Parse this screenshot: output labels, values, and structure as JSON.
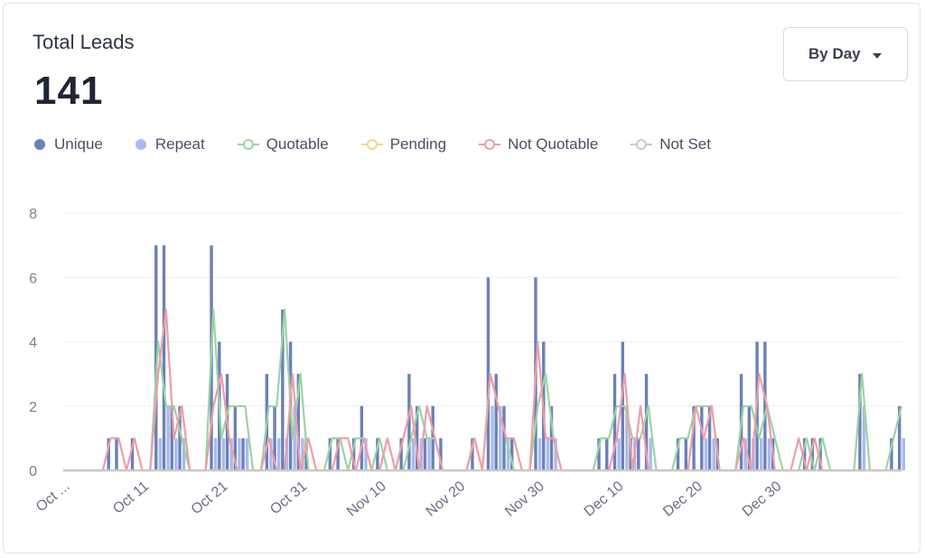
{
  "header": {
    "title": "Total Leads",
    "total": "141",
    "dropdown_label": "By Day"
  },
  "legend": [
    {
      "name": "Unique",
      "color": "#6a80b9",
      "kind": "bar"
    },
    {
      "name": "Repeat",
      "color": "#a9bbec",
      "kind": "bar"
    },
    {
      "name": "Quotable",
      "color": "#9ad5a3",
      "kind": "line"
    },
    {
      "name": "Pending",
      "color": "#f6d38e",
      "kind": "line"
    },
    {
      "name": "Not Quotable",
      "color": "#ef9da8",
      "kind": "line"
    },
    {
      "name": "Not Set",
      "color": "#c9c9c9",
      "kind": "line"
    }
  ],
  "chart_data": {
    "type": "bar",
    "x_start": "Oct 1",
    "x_end": "Dec 31",
    "x_ticks": [
      "Oct ...",
      "Oct 11",
      "Oct 21",
      "Oct 31",
      "Nov 10",
      "Nov 20",
      "Nov 30",
      "Dec 10",
      "Dec 20",
      "Dec 30"
    ],
    "y_ticks": [
      0,
      2,
      4,
      6,
      8
    ],
    "ylim": [
      0,
      8
    ],
    "grid": true,
    "legend_position": "top-left",
    "series": [
      {
        "name": "Unique",
        "type": "bar",
        "color": "#6a80b9",
        "values": [
          0,
          0,
          0,
          0,
          0,
          0,
          1,
          1,
          0,
          1,
          0,
          0,
          7,
          7,
          2,
          2,
          0,
          0,
          0,
          7,
          4,
          3,
          2,
          1,
          0,
          0,
          3,
          2,
          5,
          4,
          3,
          1,
          0,
          0,
          1,
          1,
          0,
          1,
          2,
          0,
          1,
          0,
          0,
          1,
          3,
          2,
          1,
          2,
          1,
          0,
          0,
          0,
          1,
          0,
          6,
          3,
          2,
          1,
          0,
          0,
          6,
          4,
          2,
          0,
          0,
          0,
          0,
          0,
          1,
          1,
          3,
          4,
          1,
          1,
          3,
          0,
          0,
          0,
          1,
          1,
          2,
          2,
          2,
          1,
          0,
          0,
          3,
          2,
          4,
          4,
          1,
          0,
          0,
          0,
          1,
          1,
          1,
          0,
          0,
          0,
          0,
          3,
          0,
          0,
          0,
          1,
          2
        ]
      },
      {
        "name": "Repeat",
        "type": "bar",
        "color": "#a9bbec",
        "values": [
          0,
          0,
          0,
          0,
          0,
          0,
          0,
          0,
          0,
          0,
          0,
          0,
          1,
          2,
          1,
          1,
          0,
          0,
          0,
          1,
          1,
          1,
          1,
          1,
          0,
          0,
          1,
          1,
          1,
          2,
          1,
          0,
          0,
          0,
          0,
          0,
          0,
          0,
          1,
          0,
          0,
          0,
          0,
          0,
          1,
          1,
          1,
          0,
          0,
          0,
          0,
          0,
          0,
          0,
          2,
          2,
          1,
          0,
          0,
          0,
          1,
          1,
          1,
          0,
          0,
          0,
          0,
          0,
          0,
          0,
          1,
          2,
          1,
          0,
          1,
          0,
          0,
          0,
          0,
          0,
          0,
          1,
          1,
          0,
          0,
          0,
          1,
          1,
          1,
          1,
          0,
          0,
          0,
          0,
          0,
          0,
          0,
          0,
          0,
          0,
          0,
          2,
          0,
          0,
          0,
          0,
          1
        ]
      },
      {
        "name": "Quotable",
        "type": "line",
        "color": "#9ad5a3",
        "values": [
          0,
          0,
          0,
          0,
          0,
          0,
          0,
          0,
          0,
          0,
          0,
          0,
          4,
          2,
          2,
          1,
          0,
          0,
          0,
          5,
          1,
          2,
          2,
          2,
          0,
          0,
          2,
          2,
          5,
          1,
          3,
          0,
          0,
          0,
          1,
          1,
          0,
          1,
          1,
          0,
          1,
          0,
          0,
          0,
          1,
          2,
          1,
          1,
          0,
          0,
          0,
          0,
          1,
          0,
          3,
          2,
          1,
          0,
          0,
          0,
          2,
          3,
          1,
          0,
          0,
          0,
          0,
          0,
          1,
          1,
          2,
          2,
          1,
          1,
          2,
          0,
          0,
          0,
          1,
          1,
          2,
          2,
          2,
          0,
          0,
          0,
          2,
          2,
          1,
          2,
          1,
          0,
          0,
          0,
          1,
          0,
          1,
          0,
          0,
          0,
          0,
          3,
          0,
          0,
          0,
          1,
          2
        ]
      },
      {
        "name": "Pending",
        "type": "line",
        "color": "#f6d38e",
        "values": [
          0,
          0,
          0,
          0,
          0,
          0,
          0,
          0,
          0,
          0,
          0,
          0,
          0,
          0,
          0,
          0,
          0,
          0,
          0,
          0,
          0,
          0,
          0,
          0,
          0,
          0,
          0,
          0,
          0,
          0,
          0,
          0,
          0,
          0,
          0,
          0,
          0,
          0,
          0,
          0,
          0,
          0,
          0,
          0,
          0,
          0,
          0,
          0,
          0,
          0,
          0,
          0,
          0,
          0,
          0,
          0,
          0,
          0,
          0,
          0,
          0,
          0,
          0,
          0,
          0,
          0,
          0,
          0,
          0,
          0,
          0,
          0,
          0,
          0,
          0,
          0,
          0,
          0,
          0,
          0,
          0,
          0,
          0,
          0,
          0,
          0,
          0,
          0,
          0,
          0,
          0,
          0,
          0,
          0,
          0,
          0,
          0,
          0,
          0,
          0,
          0,
          0,
          0,
          0,
          0,
          0,
          0
        ]
      },
      {
        "name": "Not Quotable",
        "type": "line",
        "color": "#ef9da8",
        "values": [
          0,
          0,
          0,
          0,
          0,
          0,
          1,
          1,
          0,
          1,
          0,
          0,
          3,
          5,
          1,
          2,
          0,
          0,
          0,
          2,
          3,
          1,
          0,
          0,
          0,
          0,
          1,
          0,
          0,
          3,
          0,
          1,
          0,
          0,
          0,
          1,
          1,
          0,
          1,
          0,
          0,
          1,
          0,
          1,
          2,
          0,
          2,
          1,
          0,
          0,
          0,
          0,
          1,
          0,
          3,
          2,
          1,
          1,
          0,
          0,
          4,
          1,
          1,
          0,
          0,
          0,
          0,
          0,
          0,
          0,
          1,
          3,
          0,
          2,
          0,
          0,
          0,
          0,
          0,
          0,
          2,
          1,
          2,
          0,
          0,
          0,
          1,
          0,
          3,
          2,
          0,
          0,
          0,
          1,
          0,
          1,
          0,
          0,
          0,
          0,
          0,
          0,
          0,
          0,
          0,
          0,
          0
        ]
      },
      {
        "name": "Not Set",
        "type": "line",
        "color": "#c9c9c9",
        "values": [
          0,
          0,
          0,
          0,
          0,
          0,
          0,
          0,
          0,
          0,
          0,
          0,
          0,
          0,
          0,
          0,
          0,
          0,
          0,
          0,
          0,
          0,
          0,
          0,
          0,
          0,
          0,
          0,
          0,
          0,
          0,
          0,
          0,
          0,
          0,
          0,
          0,
          0,
          0,
          0,
          0,
          0,
          0,
          0,
          0,
          0,
          0,
          0,
          0,
          0,
          0,
          0,
          0,
          0,
          0,
          0,
          0,
          0,
          0,
          0,
          0,
          0,
          0,
          0,
          0,
          0,
          0,
          0,
          0,
          0,
          0,
          0,
          0,
          0,
          0,
          0,
          0,
          0,
          0,
          0,
          0,
          0,
          0,
          0,
          0,
          0,
          0,
          0,
          0,
          0,
          0,
          0,
          0,
          0,
          0,
          0,
          0,
          0,
          0,
          0,
          0,
          0,
          0,
          0,
          0,
          0,
          0
        ]
      }
    ]
  }
}
